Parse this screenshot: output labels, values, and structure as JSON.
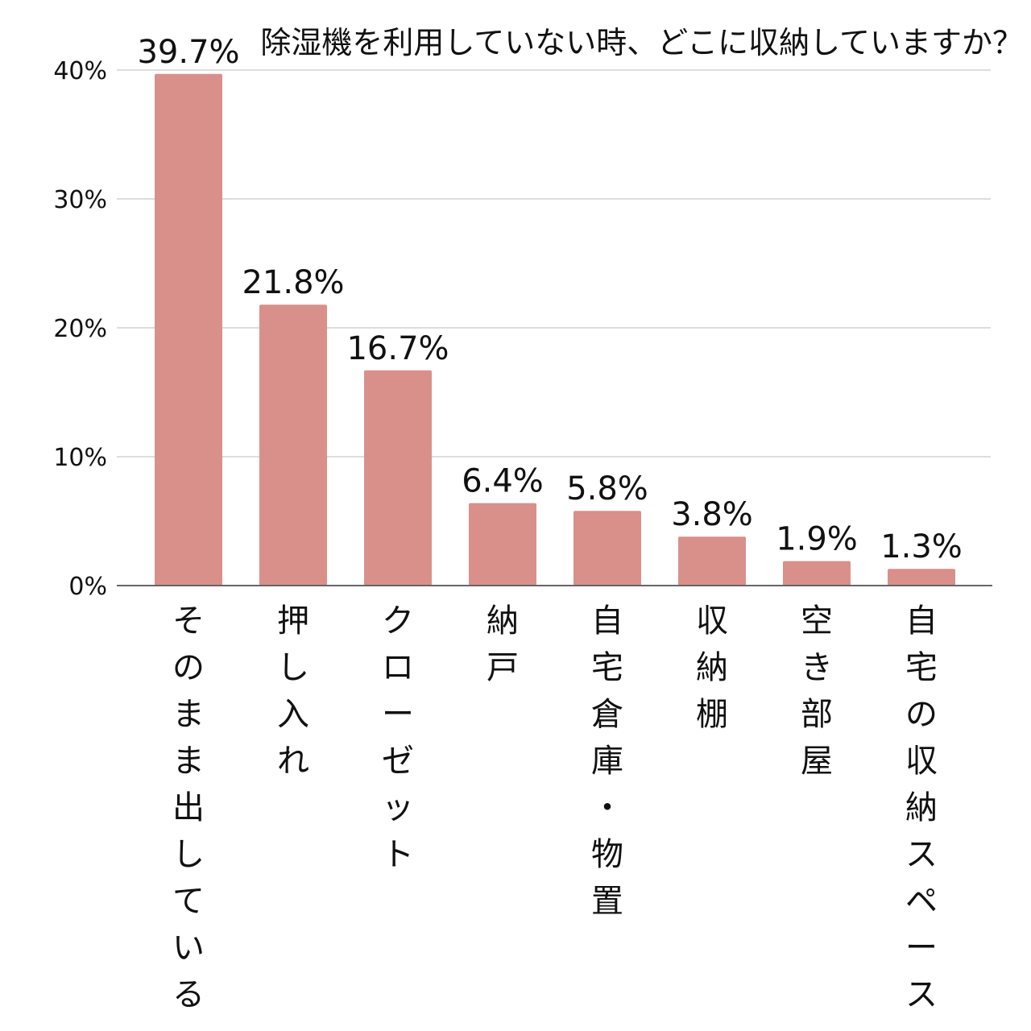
{
  "chart_data": {
    "type": "bar",
    "title": "除湿機を利用していない時、どこに収納していますか？",
    "categories": [
      "そのまま出している",
      "押し入れ",
      "クローゼット",
      "納戸",
      "自宅倉庫・物置",
      "収納棚",
      "空き部屋",
      "自宅の収納スペース"
    ],
    "values": [
      39.7,
      21.8,
      16.7,
      6.4,
      5.8,
      3.8,
      1.9,
      1.3
    ],
    "data_labels": [
      "39.7%",
      "21.8%",
      "16.7%",
      "6.4%",
      "5.8%",
      "3.8%",
      "1.9%",
      "1.3%"
    ],
    "y_ticks": [
      0,
      10,
      20,
      30,
      40
    ],
    "y_tick_labels": [
      "0%",
      "10%",
      "20%",
      "30%",
      "40%"
    ],
    "ylim": [
      0,
      40
    ],
    "xlabel": "",
    "ylabel": "",
    "grid": true,
    "bar_color": "#d9908a",
    "grid_color": "#dddddd",
    "axis_color": "#666666"
  }
}
